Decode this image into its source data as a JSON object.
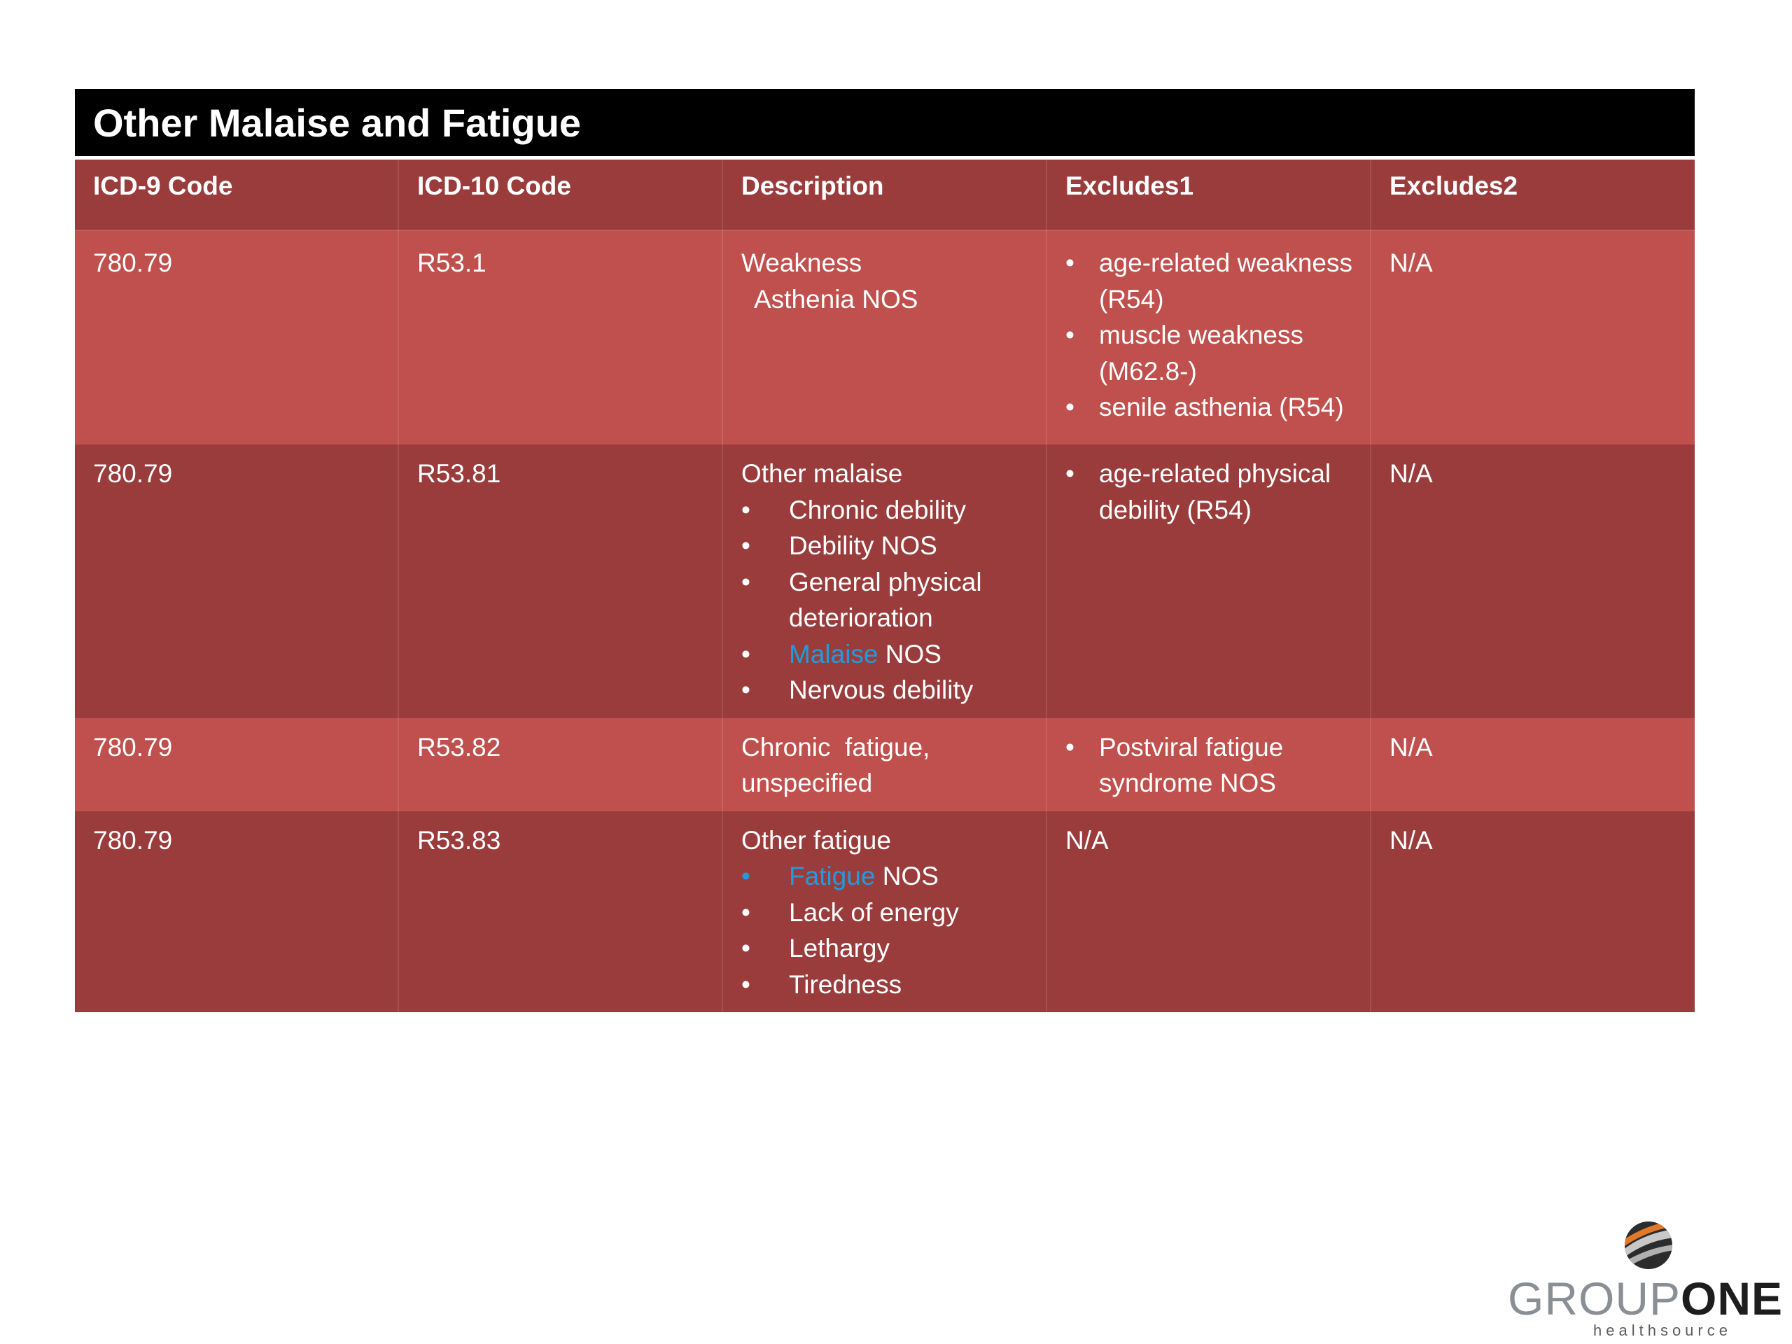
{
  "title": "Other Malaise and Fatigue",
  "columns": [
    "ICD-9 Code",
    "ICD-10 Code",
    "Description",
    "Excludes1",
    "Excludes2"
  ],
  "rows": [
    {
      "icd9": "780.79",
      "icd10": "R53.1",
      "description_main": "Weakness",
      "description_sub": "Asthenia NOS",
      "excludes1": [
        "age-related weakness (R54)",
        "muscle weakness (M62.8-)",
        "senile asthenia (R54)"
      ],
      "excludes2": "N/A"
    },
    {
      "icd9": "780.79",
      "icd10": "R53.81",
      "description_main": "Other malaise",
      "description_items": [
        "Chronic debility",
        "Debility NOS",
        "General physical deterioration",
        "Malaise NOS",
        "Nervous debility"
      ],
      "description_item4_highlight": "Malaise",
      "description_item4_rest": " NOS",
      "excludes1": [
        "age-related physical debility (R54)"
      ],
      "excludes2": "N/A"
    },
    {
      "icd9": "780.79",
      "icd10": "R53.82",
      "description_main": "Chronic  fatigue, unspecified",
      "excludes1": [
        "Postviral fatigue syndrome NOS"
      ],
      "excludes2": "N/A"
    },
    {
      "icd9": "780.79",
      "icd10": "R53.83",
      "description_main": "Other fatigue",
      "description_item1_highlight": "Fatigue",
      "description_item1_rest": " NOS",
      "description_items": [
        "Fatigue NOS",
        "Lack of energy",
        "Lethargy",
        "Tiredness"
      ],
      "excludes1_text": "N/A",
      "excludes2": "N/A"
    }
  ],
  "bullet": "•",
  "logo": {
    "word_light": "GROUP",
    "word_bold": "ONE",
    "sub": "healthsource"
  },
  "colors": {
    "header_bg": "#000000",
    "row_dark": "#9b3c3c",
    "row_light": "#c0504d",
    "highlight": "#1f9bde"
  }
}
